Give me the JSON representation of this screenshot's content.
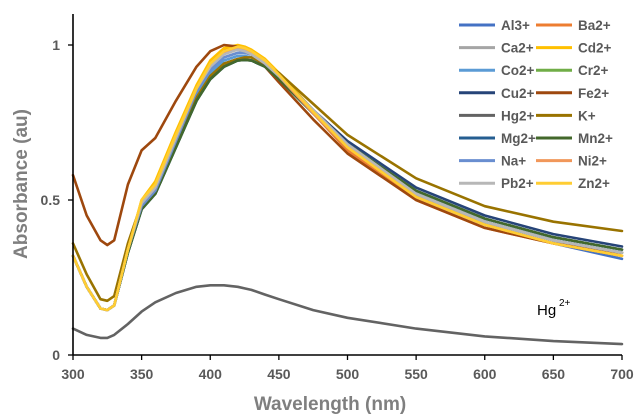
{
  "chart_data": {
    "type": "line",
    "title": "",
    "xlabel": "Wavelength (nm)",
    "ylabel": "Absorbance (au)",
    "xlim": [
      300,
      700
    ],
    "ylim": [
      0,
      1.1
    ],
    "xticks": [
      300,
      350,
      400,
      450,
      500,
      550,
      600,
      650,
      700
    ],
    "yticks": [
      0,
      0.5,
      1
    ],
    "ytick_labels": [
      "0",
      "0.5",
      "1"
    ],
    "grid": false,
    "legend_placement": "top-right",
    "annotation": {
      "text": "Hg",
      "superscript": "2+",
      "x": 555,
      "y": 0.14
    },
    "x": [
      300,
      310,
      320,
      325,
      330,
      340,
      350,
      360,
      375,
      390,
      400,
      410,
      420,
      425,
      430,
      440,
      450,
      475,
      500,
      550,
      600,
      650,
      700
    ],
    "series": [
      {
        "name": "Al3+",
        "color": "#4472c4",
        "values": [
          0.32,
          0.22,
          0.15,
          0.145,
          0.16,
          0.34,
          0.48,
          0.53,
          0.68,
          0.83,
          0.9,
          0.94,
          0.955,
          0.955,
          0.95,
          0.93,
          0.89,
          0.78,
          0.67,
          0.51,
          0.42,
          0.36,
          0.31
        ]
      },
      {
        "name": "Ba2+",
        "color": "#ed7d31",
        "values": [
          0.32,
          0.22,
          0.15,
          0.145,
          0.16,
          0.34,
          0.49,
          0.54,
          0.7,
          0.86,
          0.94,
          0.985,
          0.995,
          0.99,
          0.98,
          0.95,
          0.9,
          0.78,
          0.66,
          0.5,
          0.41,
          0.36,
          0.32
        ]
      },
      {
        "name": "Ca2+",
        "color": "#a5a5a5",
        "values": [
          0.32,
          0.22,
          0.15,
          0.145,
          0.16,
          0.34,
          0.48,
          0.53,
          0.69,
          0.85,
          0.92,
          0.96,
          0.975,
          0.975,
          0.97,
          0.94,
          0.9,
          0.79,
          0.68,
          0.52,
          0.43,
          0.37,
          0.33
        ]
      },
      {
        "name": "Cd2+",
        "color": "#ffc000",
        "values": [
          0.32,
          0.22,
          0.15,
          0.145,
          0.16,
          0.34,
          0.5,
          0.56,
          0.72,
          0.87,
          0.95,
          0.99,
          1.0,
          0.995,
          0.985,
          0.955,
          0.91,
          0.79,
          0.67,
          0.51,
          0.42,
          0.36,
          0.32
        ]
      },
      {
        "name": "Co2+",
        "color": "#5b9bd5",
        "values": [
          0.32,
          0.22,
          0.15,
          0.145,
          0.16,
          0.34,
          0.48,
          0.53,
          0.68,
          0.84,
          0.91,
          0.95,
          0.965,
          0.965,
          0.96,
          0.93,
          0.89,
          0.78,
          0.67,
          0.52,
          0.43,
          0.37,
          0.33
        ]
      },
      {
        "name": "Cr2+",
        "color": "#70ad47",
        "values": [
          0.32,
          0.22,
          0.15,
          0.145,
          0.16,
          0.33,
          0.47,
          0.52,
          0.67,
          0.82,
          0.89,
          0.93,
          0.95,
          0.952,
          0.95,
          0.93,
          0.89,
          0.78,
          0.67,
          0.52,
          0.43,
          0.37,
          0.33
        ]
      },
      {
        "name": "Cu2+",
        "color": "#264478",
        "values": [
          0.32,
          0.22,
          0.15,
          0.145,
          0.16,
          0.33,
          0.47,
          0.52,
          0.67,
          0.82,
          0.89,
          0.93,
          0.95,
          0.952,
          0.95,
          0.93,
          0.9,
          0.79,
          0.69,
          0.54,
          0.45,
          0.39,
          0.35
        ]
      },
      {
        "name": "Fe2+",
        "color": "#9e480e",
        "values": [
          0.58,
          0.45,
          0.37,
          0.355,
          0.37,
          0.55,
          0.66,
          0.7,
          0.82,
          0.93,
          0.98,
          1.0,
          0.995,
          0.985,
          0.97,
          0.93,
          0.88,
          0.76,
          0.65,
          0.5,
          0.41,
          0.36,
          0.33
        ]
      },
      {
        "name": "Hg2+",
        "color": "#636363",
        "values": [
          0.085,
          0.065,
          0.055,
          0.055,
          0.065,
          0.1,
          0.14,
          0.17,
          0.2,
          0.22,
          0.225,
          0.225,
          0.22,
          0.215,
          0.21,
          0.195,
          0.18,
          0.145,
          0.12,
          0.085,
          0.06,
          0.045,
          0.035
        ]
      },
      {
        "name": "K+",
        "color": "#997300",
        "values": [
          0.36,
          0.26,
          0.18,
          0.175,
          0.19,
          0.36,
          0.49,
          0.54,
          0.68,
          0.83,
          0.9,
          0.94,
          0.955,
          0.96,
          0.96,
          0.94,
          0.91,
          0.81,
          0.71,
          0.57,
          0.48,
          0.43,
          0.4
        ]
      },
      {
        "name": "Mg2+",
        "color": "#255e91",
        "values": [
          0.32,
          0.22,
          0.15,
          0.145,
          0.16,
          0.33,
          0.47,
          0.52,
          0.67,
          0.82,
          0.89,
          0.93,
          0.95,
          0.952,
          0.95,
          0.93,
          0.89,
          0.78,
          0.68,
          0.53,
          0.44,
          0.38,
          0.34
        ]
      },
      {
        "name": "Mn2+",
        "color": "#43682b",
        "values": [
          0.32,
          0.22,
          0.15,
          0.145,
          0.16,
          0.33,
          0.47,
          0.52,
          0.67,
          0.82,
          0.89,
          0.93,
          0.95,
          0.952,
          0.95,
          0.93,
          0.89,
          0.78,
          0.68,
          0.53,
          0.44,
          0.38,
          0.34
        ]
      },
      {
        "name": "Na+",
        "color": "#698ed0",
        "values": [
          0.32,
          0.22,
          0.15,
          0.145,
          0.16,
          0.34,
          0.48,
          0.53,
          0.69,
          0.85,
          0.92,
          0.96,
          0.975,
          0.975,
          0.97,
          0.94,
          0.9,
          0.79,
          0.68,
          0.52,
          0.43,
          0.37,
          0.33
        ]
      },
      {
        "name": "Ni2+",
        "color": "#f1975a",
        "values": [
          0.32,
          0.22,
          0.15,
          0.145,
          0.16,
          0.34,
          0.49,
          0.54,
          0.7,
          0.86,
          0.93,
          0.975,
          0.99,
          0.985,
          0.975,
          0.945,
          0.9,
          0.78,
          0.67,
          0.51,
          0.42,
          0.36,
          0.32
        ]
      },
      {
        "name": "Pb2+",
        "color": "#b7b7b7",
        "values": [
          0.32,
          0.22,
          0.15,
          0.145,
          0.16,
          0.34,
          0.49,
          0.54,
          0.7,
          0.86,
          0.93,
          0.97,
          0.985,
          0.98,
          0.97,
          0.94,
          0.9,
          0.79,
          0.68,
          0.52,
          0.43,
          0.37,
          0.33
        ]
      },
      {
        "name": "Zn2+",
        "color": "#ffcd33",
        "values": [
          0.32,
          0.22,
          0.15,
          0.145,
          0.16,
          0.34,
          0.5,
          0.55,
          0.71,
          0.86,
          0.94,
          0.98,
          0.995,
          0.99,
          0.98,
          0.95,
          0.905,
          0.785,
          0.67,
          0.51,
          0.42,
          0.36,
          0.32
        ]
      }
    ]
  }
}
